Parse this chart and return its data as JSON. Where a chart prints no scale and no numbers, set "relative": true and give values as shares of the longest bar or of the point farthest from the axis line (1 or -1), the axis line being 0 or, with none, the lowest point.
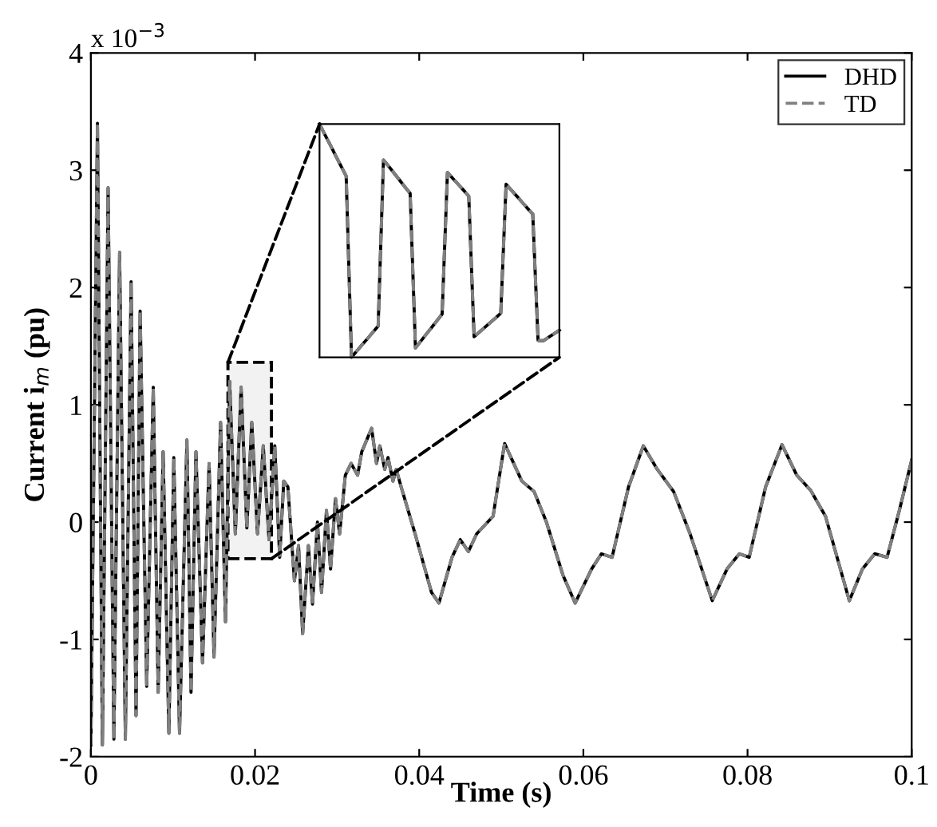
{
  "chart_data": [
    {
      "type": "line",
      "xlabel": "Time (s)",
      "ylabel": "Current i$_{m}$ (pu)",
      "annotations": [
        "x 10$^{−3}$"
      ],
      "xlim": [
        0,
        0.1
      ],
      "xticks": [
        0,
        0.02,
        0.04,
        0.06,
        0.08,
        0.1
      ],
      "ylim": [
        -2,
        4
      ],
      "yticks": [
        -2,
        -1,
        0,
        1,
        2,
        3,
        4
      ],
      "grid": false,
      "legend": "top right",
      "bands": [
        {
          "axis": "x",
          "from": 0.0167,
          "to": 0.022,
          "color": "#f2f2f2"
        }
      ],
      "x": [
        0,
        0.0008,
        0.0014,
        0.0021,
        0.0028,
        0.0035,
        0.0042,
        0.0049,
        0.0055,
        0.006,
        0.0068,
        0.0076,
        0.0082,
        0.0088,
        0.0095,
        0.0101,
        0.0108,
        0.0117,
        0.0122,
        0.0128,
        0.0136,
        0.0144,
        0.015,
        0.0158,
        0.0164,
        0.0169,
        0.0176,
        0.0183,
        0.019,
        0.0196,
        0.0203,
        0.021,
        0.0217,
        0.0224,
        0.023,
        0.0235,
        0.024,
        0.0248,
        0.0253,
        0.0258,
        0.0265,
        0.027,
        0.0276,
        0.0281,
        0.0287,
        0.0292,
        0.0298,
        0.0303,
        0.031,
        0.0317,
        0.0325,
        0.033,
        0.0342,
        0.0348,
        0.0352,
        0.0358,
        0.0362,
        0.0368,
        0.0372,
        0.0378,
        0.0395,
        0.0415,
        0.0424,
        0.044,
        0.045,
        0.046,
        0.047,
        0.049,
        0.0504,
        0.0525,
        0.054,
        0.0555,
        0.0575,
        0.059,
        0.061,
        0.0622,
        0.0635,
        0.0655,
        0.0673,
        0.069,
        0.071,
        0.073,
        0.0757,
        0.0775,
        0.079,
        0.0802,
        0.0822,
        0.0842,
        0.086,
        0.0877,
        0.0895,
        0.0924,
        0.094,
        0.0955,
        0.097,
        0.0985,
        0.1
      ],
      "series": [
        {
          "name": "DHD",
          "color": "#000000",
          "line_style": "solid",
          "values": [
            -1.9,
            3.4,
            -1.9,
            2.85,
            -1.85,
            2.3,
            -1.85,
            2.05,
            -1.65,
            1.8,
            -1.4,
            1.15,
            -1.45,
            0.6,
            -1.8,
            0.55,
            -1.8,
            0.7,
            -1.45,
            0.6,
            -1.2,
            0.5,
            -1.15,
            0.85,
            -0.85,
            1.2,
            -0.1,
            1.15,
            -0.05,
            0.85,
            -0.1,
            0.65,
            -0.15,
            0.65,
            -0.3,
            0.35,
            0.3,
            -0.5,
            -0.2,
            -0.95,
            -0.2,
            -0.7,
            0.0,
            -0.6,
            0.1,
            -0.4,
            0.2,
            -0.1,
            0.4,
            0.5,
            0.4,
            0.6,
            0.8,
            0.5,
            0.65,
            0.45,
            0.55,
            0.35,
            0.45,
            0.3,
            -0.1,
            -0.6,
            -0.69,
            -0.3,
            -0.15,
            -0.25,
            -0.1,
            0.05,
            0.67,
            0.35,
            0.26,
            0.0,
            -0.45,
            -0.69,
            -0.4,
            -0.27,
            -0.3,
            0.3,
            0.65,
            0.45,
            0.26,
            -0.1,
            -0.67,
            -0.4,
            -0.27,
            -0.3,
            0.3,
            0.66,
            0.4,
            0.27,
            0.05,
            -0.67,
            -0.4,
            -0.27,
            -0.3,
            0.1,
            0.53
          ]
        },
        {
          "name": "TD",
          "color": "#808080",
          "line_style": "dashed",
          "values": [
            -1.9,
            3.4,
            -1.9,
            2.85,
            -1.85,
            2.3,
            -1.85,
            2.05,
            -1.65,
            1.8,
            -1.4,
            1.15,
            -1.45,
            0.6,
            -1.8,
            0.55,
            -1.8,
            0.7,
            -1.45,
            0.6,
            -1.2,
            0.5,
            -1.15,
            0.85,
            -0.85,
            1.2,
            -0.1,
            1.15,
            -0.05,
            0.85,
            -0.1,
            0.65,
            -0.15,
            0.65,
            -0.3,
            0.35,
            0.3,
            -0.5,
            -0.2,
            -0.95,
            -0.2,
            -0.7,
            0.0,
            -0.6,
            0.1,
            -0.4,
            0.2,
            -0.1,
            0.4,
            0.5,
            0.4,
            0.6,
            0.8,
            0.5,
            0.65,
            0.45,
            0.55,
            0.35,
            0.45,
            0.3,
            -0.1,
            -0.6,
            -0.69,
            -0.3,
            -0.15,
            -0.25,
            -0.1,
            0.05,
            0.67,
            0.35,
            0.26,
            0.0,
            -0.45,
            -0.69,
            -0.4,
            -0.27,
            -0.3,
            0.3,
            0.65,
            0.45,
            0.26,
            -0.1,
            -0.67,
            -0.4,
            -0.27,
            -0.3,
            0.3,
            0.66,
            0.4,
            0.27,
            0.05,
            -0.67,
            -0.4,
            -0.27,
            -0.3,
            0.1,
            0.53
          ]
        }
      ]
    },
    {
      "type": "line",
      "relative": true,
      "tick_labels": false,
      "categories": [
        null,
        null,
        null,
        null,
        null,
        null,
        null,
        null,
        null,
        null,
        null,
        null,
        null,
        null,
        null,
        null,
        null,
        null,
        null,
        null,
        null,
        null,
        null,
        null,
        null,
        null,
        null,
        null,
        null,
        null,
        null,
        null,
        null,
        null,
        null,
        null,
        null,
        null,
        null,
        null,
        null,
        null,
        null,
        null,
        null,
        null
      ],
      "series": [
        {
          "color": "#000000",
          "line_style": "solid",
          "values": [
            1.0,
            0.955,
            0.911,
            0.866,
            0.821,
            0.777,
            0.0,
            0.027,
            0.054,
            0.08,
            0.107,
            0.134,
            0.846,
            0.818,
            0.789,
            0.76,
            0.731,
            0.703,
            0.04,
            0.069,
            0.098,
            0.127,
            0.156,
            0.185,
            0.792,
            0.767,
            0.742,
            0.717,
            0.691,
            0.088,
            0.108,
            0.128,
            0.148,
            0.168,
            0.189,
            0.742,
            0.716,
            0.691,
            0.665,
            0.639,
            0.614,
            0.072,
            0.071,
            0.086,
            0.101,
            0.116
          ]
        },
        {
          "color": "#808080",
          "line_style": "dashed",
          "values": [
            1.0,
            0.955,
            0.911,
            0.866,
            0.821,
            0.777,
            0.0,
            0.027,
            0.054,
            0.08,
            0.107,
            0.134,
            0.846,
            0.818,
            0.789,
            0.76,
            0.731,
            0.703,
            0.04,
            0.069,
            0.098,
            0.127,
            0.156,
            0.185,
            0.792,
            0.767,
            0.742,
            0.717,
            0.691,
            0.088,
            0.108,
            0.128,
            0.148,
            0.168,
            0.189,
            0.742,
            0.716,
            0.691,
            0.665,
            0.639,
            0.614,
            0.072,
            0.071,
            0.086,
            0.101,
            0.116
          ]
        }
      ]
    }
  ]
}
